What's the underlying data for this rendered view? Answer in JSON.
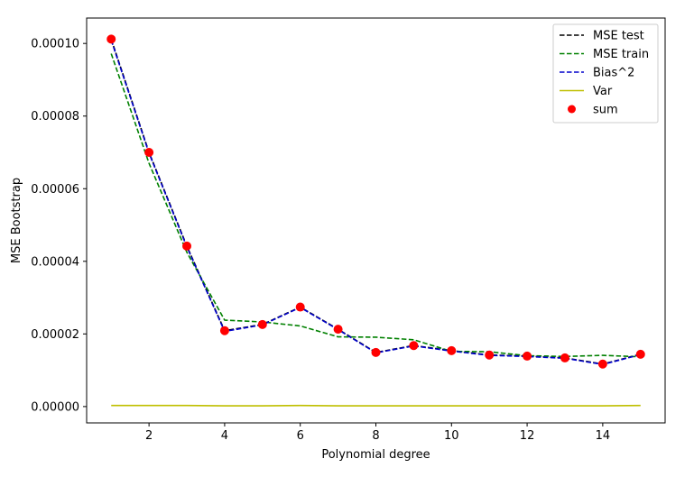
{
  "chart_data": {
    "type": "line",
    "title": "",
    "xlabel": "Polynomial degree",
    "ylabel": "MSE Bootstrap",
    "xlim": [
      0.35,
      15.65
    ],
    "ylim": [
      -4.5e-06,
      0.000107
    ],
    "x_ticks": [
      2,
      4,
      6,
      8,
      10,
      12,
      14
    ],
    "x_tick_labels": [
      "2",
      "4",
      "6",
      "8",
      "10",
      "12",
      "14"
    ],
    "y_ticks": [
      0,
      2e-05,
      4e-05,
      6e-05,
      8e-05,
      0.0001
    ],
    "y_tick_labels": [
      "0.00000",
      "0.00002",
      "0.00004",
      "0.00006",
      "0.00008",
      "0.00010"
    ],
    "grid": false,
    "legend_position": "top-right",
    "x": [
      1,
      2,
      3,
      4,
      5,
      6,
      7,
      8,
      9,
      10,
      11,
      12,
      13,
      14,
      15
    ],
    "series": [
      {
        "name": "MSE test",
        "kind": "line",
        "style": "dashed",
        "color": "#000000",
        "values": [
          0.0001012,
          7e-05,
          4.42e-05,
          2.09e-05,
          2.26e-05,
          2.74e-05,
          2.13e-05,
          1.49e-05,
          1.68e-05,
          1.54e-05,
          1.42e-05,
          1.39e-05,
          1.34e-05,
          1.17e-05,
          1.44e-05
        ]
      },
      {
        "name": "MSE train",
        "kind": "line",
        "style": "dashed",
        "color": "#008000",
        "values": [
          9.72e-05,
          6.7e-05,
          4.25e-05,
          2.38e-05,
          2.33e-05,
          2.22e-05,
          1.92e-05,
          1.91e-05,
          1.84e-05,
          1.52e-05,
          1.51e-05,
          1.4e-05,
          1.38e-05,
          1.41e-05,
          1.37e-05
        ]
      },
      {
        "name": "Bias^2",
        "kind": "line",
        "style": "dashed",
        "color": "#0000cc",
        "values": [
          0.0001009,
          6.98e-05,
          4.4e-05,
          2.07e-05,
          2.25e-05,
          2.73e-05,
          2.12e-05,
          1.48e-05,
          1.67e-05,
          1.53e-05,
          1.41e-05,
          1.38e-05,
          1.33e-05,
          1.16e-05,
          1.43e-05
        ]
      },
      {
        "name": "Var",
        "kind": "line",
        "style": "solid",
        "color": "#bfbf00",
        "values": [
          3e-07,
          3e-07,
          3e-07,
          2e-07,
          2e-07,
          3e-07,
          2e-07,
          2e-07,
          2e-07,
          2e-07,
          2e-07,
          2e-07,
          2e-07,
          2e-07,
          3e-07
        ]
      },
      {
        "name": "sum",
        "kind": "marker",
        "style": "circle",
        "color": "#ff0000",
        "values": [
          0.0001012,
          7e-05,
          4.42e-05,
          2.09e-05,
          2.26e-05,
          2.74e-05,
          2.13e-05,
          1.49e-05,
          1.68e-05,
          1.54e-05,
          1.42e-05,
          1.39e-05,
          1.34e-05,
          1.17e-05,
          1.44e-05
        ]
      }
    ]
  }
}
